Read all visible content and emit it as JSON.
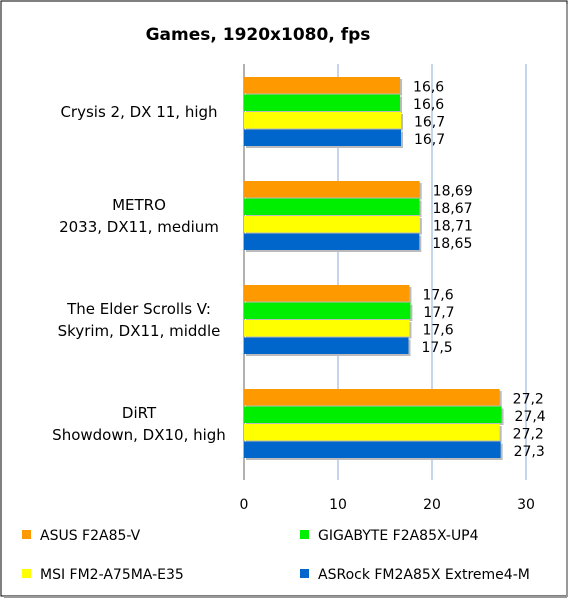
{
  "chart_data": {
    "type": "bar",
    "orientation": "horizontal",
    "title": "Games, 1920x1080, fps",
    "xlabel": "",
    "ylabel": "",
    "xlim": [
      0,
      30
    ],
    "xticks": [
      "0",
      "10",
      "20",
      "30"
    ],
    "grid": true,
    "legend_position": "bottom",
    "categories": [
      [
        "Crysis 2, DX 11, high"
      ],
      [
        "METRO",
        "2033, DX11, medium"
      ],
      [
        "The Elder Scrolls V:",
        "Skyrim, DX11, middle"
      ],
      [
        "DiRT",
        "Showdown, DX10, high"
      ]
    ],
    "series": [
      {
        "name": "ASUS F2A85-V",
        "color": "#FF9900",
        "values": [
          16.6,
          18.69,
          17.6,
          27.2
        ],
        "labels": [
          "16,6",
          "18,69",
          "17,6",
          "27,2"
        ]
      },
      {
        "name": "GIGABYTE F2A85X-UP4",
        "color": "#00EE00",
        "values": [
          16.6,
          18.67,
          17.7,
          27.4
        ],
        "labels": [
          "16,6",
          "18,67",
          "17,7",
          "27,4"
        ]
      },
      {
        "name": "MSI FM2-A75MA-E35",
        "color": "#FFFF00",
        "values": [
          16.7,
          18.71,
          17.6,
          27.2
        ],
        "labels": [
          "16,7",
          "18,71",
          "17,6",
          "27,2"
        ]
      },
      {
        "name": "ASRock FM2A85X Extreme4-M",
        "color": "#0066CC",
        "values": [
          16.7,
          18.65,
          17.5,
          27.3
        ],
        "labels": [
          "16,7",
          "18,65",
          "17,5",
          "27,3"
        ]
      }
    ]
  }
}
